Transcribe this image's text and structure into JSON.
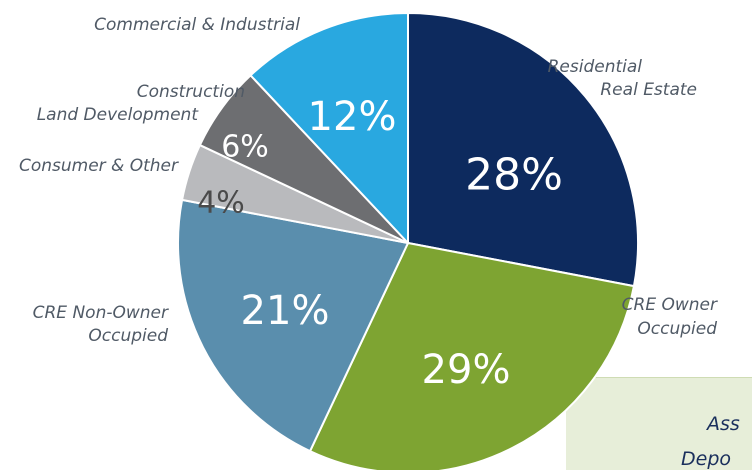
{
  "chart_data": {
    "type": "pie",
    "title": "",
    "slices": [
      {
        "label_lines": [
          "Residential",
          "Real Estate"
        ],
        "value": 28,
        "pct_label": "28%",
        "color": "#0d2a5e"
      },
      {
        "label_lines": [
          "CRE Owner",
          "Occupied"
        ],
        "value": 29,
        "pct_label": "29%",
        "color": "#7ea432"
      },
      {
        "label_lines": [
          "CRE Non-Owner",
          "Occupied"
        ],
        "value": 21,
        "pct_label": "21%",
        "color": "#5a8ead"
      },
      {
        "label_lines": [
          "Consumer & Other"
        ],
        "value": 4,
        "pct_label": "4%",
        "color": "#b9babd"
      },
      {
        "label_lines": [
          "Construction",
          "Land Development"
        ],
        "value": 6,
        "pct_label": "6%",
        "color": "#6d6e71"
      },
      {
        "label_lines": [
          "Commercial & Industrial"
        ],
        "value": 12,
        "pct_label": "12%",
        "color": "#29a8e0"
      }
    ]
  },
  "panel": {
    "line1": "Ass",
    "line2": "Depo",
    "background": "#e7eed9"
  }
}
